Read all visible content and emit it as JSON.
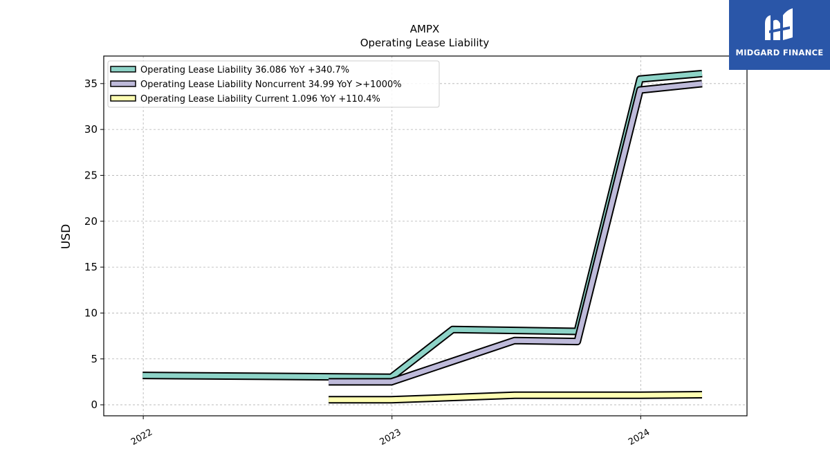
{
  "brand": {
    "name": "MIDGARD FINANCE",
    "bg_color": "#2a56a8"
  },
  "chart_data": {
    "type": "line",
    "title": "AMPX",
    "subtitle": "Operating Lease Liability",
    "xlabel": "",
    "ylabel": "USD",
    "x_ticks": [
      "2022",
      "2023",
      "2024"
    ],
    "ylim": [
      -1.2,
      38
    ],
    "yticks": [
      0,
      5,
      10,
      15,
      20,
      25,
      30,
      35
    ],
    "grid": true,
    "legend_position": "top-left",
    "series": [
      {
        "name": "Operating Lease Liability",
        "legend_label": "Operating Lease Liability  36.086 YoY +340.7%",
        "color": "#8dd3c7",
        "points": [
          [
            "2021-12-31",
            3.2
          ],
          [
            "2022-12-31",
            3.0
          ],
          [
            "2023-03-31",
            8.2
          ],
          [
            "2023-09-30",
            8.0
          ],
          [
            "2023-12-31",
            35.5
          ],
          [
            "2024-03-31",
            36.086
          ]
        ]
      },
      {
        "name": "Operating Lease Liability Noncurrent",
        "legend_label": "Operating Lease Liability Noncurrent  34.99 YoY >+1000%",
        "color": "#bebada",
        "points": [
          [
            "2022-09-30",
            2.5
          ],
          [
            "2022-12-31",
            2.5
          ],
          [
            "2023-06-30",
            7.0
          ],
          [
            "2023-09-30",
            6.9
          ],
          [
            "2023-12-31",
            34.3
          ],
          [
            "2024-03-31",
            34.99
          ]
        ]
      },
      {
        "name": "Operating Lease Liability Current",
        "legend_label": "Operating Lease Liability Current  1.096 YoY +110.4%",
        "color": "#ffffb3",
        "points": [
          [
            "2022-09-30",
            0.55
          ],
          [
            "2022-12-31",
            0.55
          ],
          [
            "2023-06-30",
            1.05
          ],
          [
            "2023-12-31",
            1.05
          ],
          [
            "2024-03-31",
            1.096
          ]
        ]
      }
    ]
  }
}
